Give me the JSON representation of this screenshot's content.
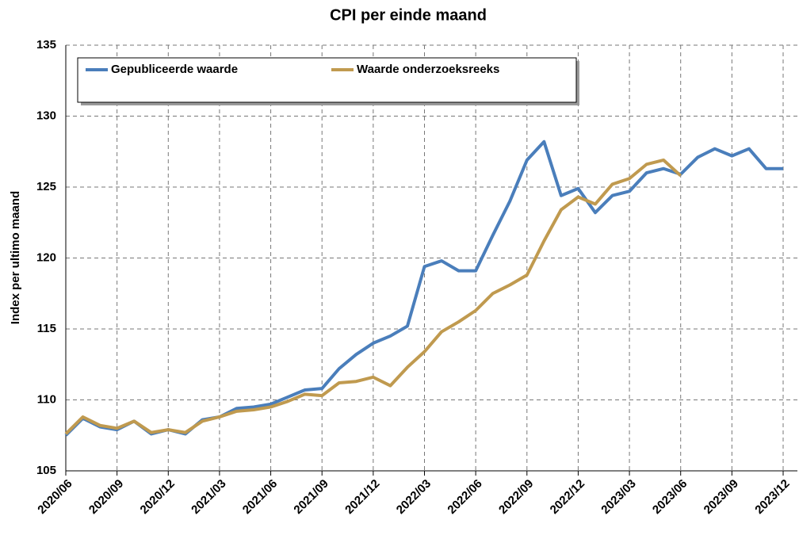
{
  "chart_data": {
    "type": "line",
    "title": "CPI per einde maand",
    "y_label": "Index per ultimo maand",
    "categories": [
      "2020/06",
      null,
      null,
      "2020/09",
      null,
      null,
      "2020/12",
      null,
      null,
      "2021/03",
      null,
      null,
      "2021/06",
      null,
      null,
      "2021/09",
      null,
      null,
      "2021/12",
      null,
      null,
      "2022/03",
      null,
      null,
      "2022/06",
      null,
      null,
      "2022/09",
      null,
      null,
      "2022/12",
      null,
      null,
      "2023/03",
      null,
      null,
      "2023/06",
      null,
      null,
      "2023/09",
      null,
      null,
      "2023/12"
    ],
    "series": [
      {
        "name": "Gepubliceerde waarde",
        "color": "#4a7ebb",
        "values": [
          107.5,
          108.7,
          108.1,
          107.9,
          108.5,
          107.6,
          107.9,
          107.6,
          108.6,
          108.8,
          109.4,
          109.5,
          109.7,
          110.2,
          110.7,
          110.8,
          112.2,
          113.2,
          114.0,
          114.5,
          115.2,
          119.4,
          119.8,
          119.1,
          119.1,
          121.6,
          124.0,
          126.9,
          128.2,
          124.4,
          124.9,
          123.2,
          124.4,
          124.7,
          126.0,
          126.3,
          125.9,
          127.1,
          127.7,
          127.2,
          127.7,
          126.3,
          126.3
        ]
      },
      {
        "name": "Waarde onderzoeksreeks",
        "color": "#c09a4f",
        "values": [
          107.6,
          108.8,
          108.2,
          108.0,
          108.5,
          107.7,
          107.9,
          107.7,
          108.5,
          108.8,
          109.2,
          109.3,
          109.5,
          109.9,
          110.4,
          110.3,
          111.2,
          111.3,
          111.6,
          111.0,
          112.3,
          113.4,
          114.8,
          115.5,
          116.3,
          117.5,
          118.1,
          118.8,
          121.2,
          123.4,
          124.3,
          123.8,
          125.2,
          125.6,
          126.6,
          126.9,
          125.8,
          null,
          null,
          null,
          null,
          null,
          null
        ]
      }
    ],
    "ylim": [
      105,
      135
    ],
    "yticks": [
      105,
      110,
      115,
      120,
      125,
      130,
      135
    ],
    "grid": true,
    "legend": "top-left"
  }
}
